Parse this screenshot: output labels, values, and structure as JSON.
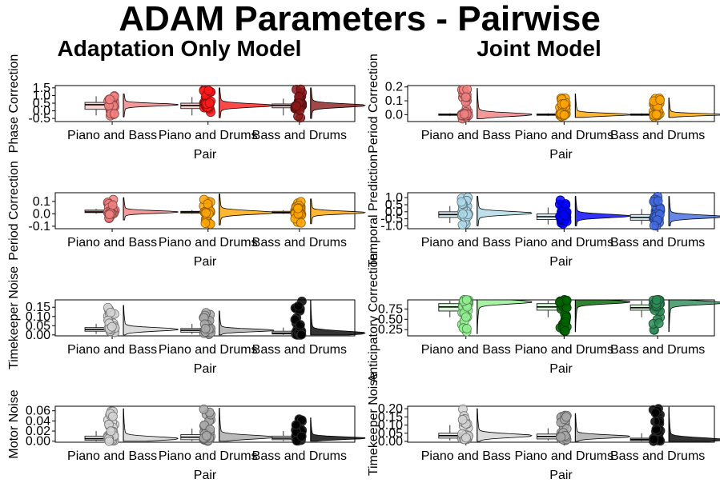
{
  "figure": {
    "title": "ADAM Parameters - Pairwise",
    "columns": [
      "Adaptation Only Model",
      "Joint Model"
    ]
  },
  "chart_data": [
    {
      "type": "raincloud",
      "column": 0,
      "ylabel": "Phase Correction",
      "xlabel": "Pair",
      "categories": [
        "Piano and Bass",
        "Piano and Drums",
        "Bass and Drums"
      ],
      "yticks": [
        -0.5,
        0.0,
        0.5,
        1.0,
        1.5
      ],
      "ytick_labels": [
        "-0.5",
        "0.0",
        "0.5",
        "1.0",
        "1.5"
      ],
      "ylim": [
        -0.7,
        1.65
      ],
      "colors": [
        "#f08080",
        "#ff1a1a",
        "#8b1a1a"
      ],
      "box_fill": "#fbd3d3",
      "groups": [
        {
          "q1": 0.1,
          "median": 0.4,
          "q3": 0.55,
          "wlo": -0.3,
          "whi": 0.95,
          "min": -0.4,
          "max": 1.1,
          "mode": 0.4
        },
        {
          "q1": 0.15,
          "median": 0.35,
          "q3": 0.5,
          "wlo": -0.3,
          "whi": 0.9,
          "min": -0.45,
          "max": 1.5,
          "mode": 0.35
        },
        {
          "q1": 0.2,
          "median": 0.35,
          "q3": 0.45,
          "wlo": -0.3,
          "whi": 0.8,
          "min": -0.5,
          "max": 1.5,
          "mode": 0.35
        }
      ]
    },
    {
      "type": "raincloud",
      "column": 1,
      "ylabel": "Period Correction",
      "xlabel": "Pair",
      "categories": [
        "Piano and Bass",
        "Piano and Drums",
        "Bass and Drums"
      ],
      "yticks": [
        0.0,
        0.1,
        0.2
      ],
      "ytick_labels": [
        "0.0",
        "0.1",
        "0.2"
      ],
      "ylim": [
        -0.05,
        0.21
      ],
      "colors": [
        "#f08080",
        "#ffa500",
        "#ffa500"
      ],
      "box_fill": "#ffffff",
      "groups": [
        {
          "q1": -0.005,
          "median": 0.0,
          "q3": 0.005,
          "wlo": -0.01,
          "whi": 0.01,
          "min": -0.03,
          "max": 0.19,
          "mode": 0.0
        },
        {
          "q1": -0.005,
          "median": 0.0,
          "q3": 0.005,
          "wlo": -0.01,
          "whi": 0.01,
          "min": -0.02,
          "max": 0.15,
          "mode": 0.0
        },
        {
          "q1": -0.005,
          "median": 0.0,
          "q3": 0.005,
          "wlo": -0.01,
          "whi": 0.01,
          "min": -0.02,
          "max": 0.12,
          "mode": 0.0
        }
      ]
    },
    {
      "type": "raincloud",
      "column": 0,
      "ylabel": "Period Correction",
      "xlabel": "Pair",
      "categories": [
        "Piano and Bass",
        "Piano and Drums",
        "Bass and Drums"
      ],
      "yticks": [
        -0.1,
        0.0,
        0.1
      ],
      "ytick_labels": [
        "-0.1",
        "0.0",
        "0.1"
      ],
      "ylim": [
        -0.12,
        0.17
      ],
      "colors": [
        "#f08080",
        "#ffa500",
        "#ffa500"
      ],
      "box_fill": "#ffffff",
      "groups": [
        {
          "q1": 0.01,
          "median": 0.015,
          "q3": 0.03,
          "wlo": 0.0,
          "whi": 0.04,
          "min": -0.05,
          "max": 0.13,
          "mode": 0.015
        },
        {
          "q1": 0.005,
          "median": 0.015,
          "q3": 0.02,
          "wlo": 0.0,
          "whi": 0.03,
          "min": -0.09,
          "max": 0.16,
          "mode": 0.01
        },
        {
          "q1": 0.005,
          "median": 0.01,
          "q3": 0.02,
          "wlo": 0.0,
          "whi": 0.03,
          "min": -0.08,
          "max": 0.12,
          "mode": 0.01
        }
      ]
    },
    {
      "type": "raincloud",
      "column": 1,
      "ylabel": "Temporal Prediction",
      "xlabel": "Pair",
      "categories": [
        "Piano and Bass",
        "Piano and Drums",
        "Bass and Drums"
      ],
      "yticks": [
        -1.0,
        -0.5,
        0.0,
        0.5,
        1.0
      ],
      "ytick_labels": [
        "-1.0",
        "-0.5",
        "0.0",
        "0.5",
        "1.0"
      ],
      "ylim": [
        -1.2,
        1.35
      ],
      "colors": [
        "#add8e6",
        "#0000ff",
        "#4169e1"
      ],
      "box_fill": "#dbeef5",
      "groups": [
        {
          "q1": -0.4,
          "median": -0.2,
          "q3": 0.0,
          "wlo": -0.8,
          "whi": 0.4,
          "min": -1.0,
          "max": 1.1,
          "mode": -0.1
        },
        {
          "q1": -0.55,
          "median": -0.35,
          "q3": -0.15,
          "wlo": -0.9,
          "whi": 0.3,
          "min": -1.0,
          "max": 1.1,
          "mode": -0.3
        },
        {
          "q1": -0.6,
          "median": -0.4,
          "q3": -0.2,
          "wlo": -0.9,
          "whi": 0.2,
          "min": -1.0,
          "max": 1.1,
          "mode": -0.35
        }
      ]
    },
    {
      "type": "raincloud",
      "column": 0,
      "ylabel": "Timekeeper Noise",
      "xlabel": "Pair",
      "categories": [
        "Piano and Bass",
        "Piano and Drums",
        "Bass and Drums"
      ],
      "yticks": [
        0.0,
        0.05,
        0.1,
        0.15
      ],
      "ytick_labels": [
        "0.00",
        "0.05",
        "0.10",
        "0.15"
      ],
      "ylim": [
        -0.005,
        0.19
      ],
      "colors": [
        "#d3d3d3",
        "#a9a9a9",
        "#000000"
      ],
      "box_fill": "#eeeeee",
      "groups": [
        {
          "q1": 0.02,
          "median": 0.03,
          "q3": 0.04,
          "wlo": 0.005,
          "whi": 0.06,
          "min": 0.0,
          "max": 0.16,
          "mode": 0.03
        },
        {
          "q1": 0.015,
          "median": 0.025,
          "q3": 0.035,
          "wlo": 0.005,
          "whi": 0.06,
          "min": 0.0,
          "max": 0.13,
          "mode": 0.025
        },
        {
          "q1": 0.005,
          "median": 0.01,
          "q3": 0.02,
          "wlo": 0.0,
          "whi": 0.04,
          "min": 0.0,
          "max": 0.19,
          "mode": 0.01
        }
      ]
    },
    {
      "type": "raincloud",
      "column": 1,
      "ylabel": "Anticipatory Correction",
      "xlabel": "Pair",
      "categories": [
        "Piano and Bass",
        "Piano and Drums",
        "Bass and Drums"
      ],
      "yticks": [
        0.25,
        0.5,
        0.75
      ],
      "ytick_labels": [
        "0.25",
        "0.50",
        "0.75"
      ],
      "ylim": [
        0.1,
        0.97
      ],
      "colors": [
        "#90ee90",
        "#006400",
        "#2e8b57"
      ],
      "box_fill": "#d6f7d6",
      "groups": [
        {
          "q1": 0.7,
          "median": 0.8,
          "q3": 0.88,
          "wlo": 0.55,
          "whi": 0.95,
          "min": 0.15,
          "max": 0.97,
          "mode": 0.92
        },
        {
          "q1": 0.72,
          "median": 0.8,
          "q3": 0.88,
          "wlo": 0.55,
          "whi": 0.95,
          "min": 0.2,
          "max": 0.97,
          "mode": 0.92
        },
        {
          "q1": 0.72,
          "median": 0.78,
          "q3": 0.85,
          "wlo": 0.55,
          "whi": 0.95,
          "min": 0.2,
          "max": 0.97,
          "mode": 0.9
        }
      ]
    },
    {
      "type": "raincloud",
      "column": 0,
      "ylabel": "Motor Noise",
      "xlabel": "Pair",
      "categories": [
        "Piano and Bass",
        "Piano and Drums",
        "Bass and Drums"
      ],
      "yticks": [
        0.0,
        0.02,
        0.04,
        0.06
      ],
      "ytick_labels": [
        "0.00",
        "0.02",
        "0.04",
        "0.06"
      ],
      "ylim": [
        -0.002,
        0.069
      ],
      "colors": [
        "#d3d3d3",
        "#a9a9a9",
        "#000000"
      ],
      "box_fill": "#eeeeee",
      "groups": [
        {
          "q1": 0.002,
          "median": 0.005,
          "q3": 0.01,
          "wlo": 0.0,
          "whi": 0.02,
          "min": 0.0,
          "max": 0.064,
          "mode": 0.005
        },
        {
          "q1": 0.003,
          "median": 0.008,
          "q3": 0.013,
          "wlo": 0.0,
          "whi": 0.025,
          "min": 0.0,
          "max": 0.065,
          "mode": 0.008
        },
        {
          "q1": 0.003,
          "median": 0.006,
          "q3": 0.01,
          "wlo": 0.0,
          "whi": 0.02,
          "min": 0.0,
          "max": 0.046,
          "mode": 0.006
        }
      ]
    },
    {
      "type": "raincloud",
      "column": 1,
      "ylabel": "Timekeeper Noise",
      "xlabel": "Pair",
      "categories": [
        "Piano and Bass",
        "Piano and Drums",
        "Bass and Drums"
      ],
      "yticks": [
        0.0,
        0.05,
        0.1,
        0.15,
        0.2
      ],
      "ytick_labels": [
        "0.00",
        "0.05",
        "0.10",
        "0.15",
        "0.20"
      ],
      "ylim": [
        -0.005,
        0.215
      ],
      "colors": [
        "#d3d3d3",
        "#a9a9a9",
        "#000000"
      ],
      "box_fill": "#eeeeee",
      "groups": [
        {
          "q1": 0.02,
          "median": 0.035,
          "q3": 0.05,
          "wlo": 0.005,
          "whi": 0.1,
          "min": 0.0,
          "max": 0.2,
          "mode": 0.035
        },
        {
          "q1": 0.015,
          "median": 0.03,
          "q3": 0.045,
          "wlo": 0.005,
          "whi": 0.08,
          "min": 0.0,
          "max": 0.17,
          "mode": 0.03
        },
        {
          "q1": 0.005,
          "median": 0.012,
          "q3": 0.02,
          "wlo": 0.0,
          "whi": 0.05,
          "min": 0.0,
          "max": 0.21,
          "mode": 0.01
        }
      ]
    }
  ]
}
